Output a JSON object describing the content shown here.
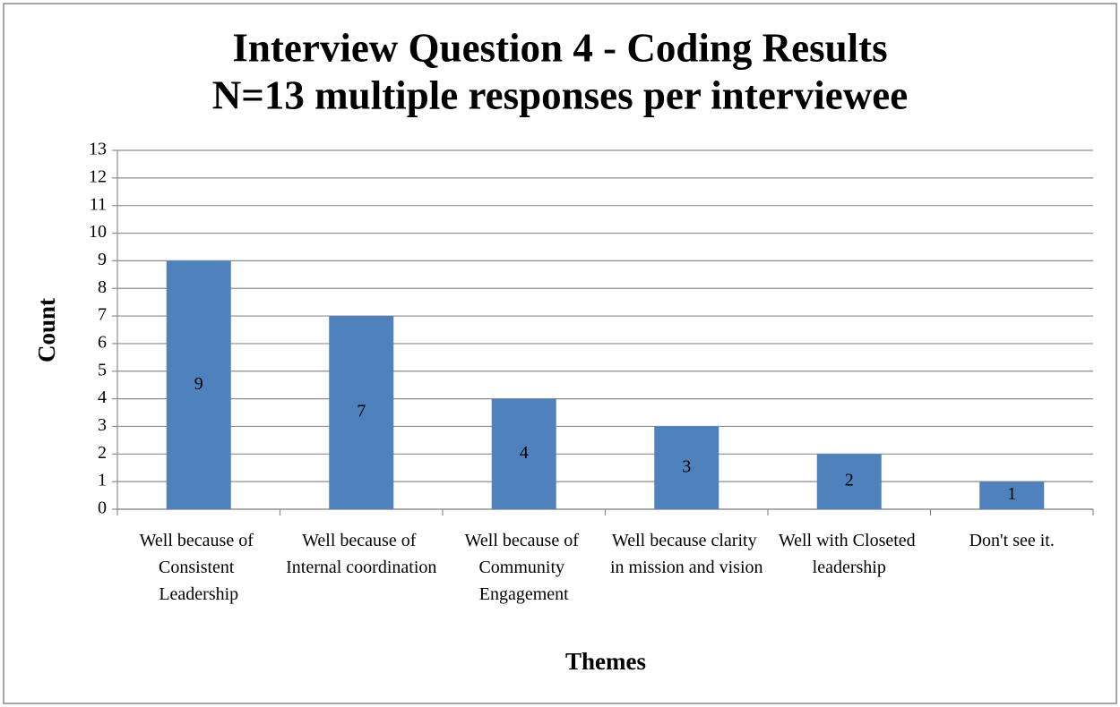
{
  "chart_data": {
    "type": "bar",
    "title": "Interview Question 4 - Coding Results",
    "subtitle": "N=13 multiple responses per interviewee",
    "x_label": "Themes",
    "y_label": "Count",
    "categories": [
      "Well because of Consistent Leadership",
      "Well because of Internal coordination",
      "Well because of Community Engagement",
      "Well because clarity in mission and vision",
      "Well with Closeted leadership",
      "Don't see it."
    ],
    "values": [
      9,
      7,
      4,
      3,
      2,
      1
    ],
    "color": "#4f81bd",
    "ylim": [
      0,
      13
    ],
    "yticks": [
      0,
      1,
      2,
      3,
      4,
      5,
      6,
      7,
      8,
      9,
      10,
      11,
      12,
      13
    ],
    "grid": true,
    "data_labels": true
  }
}
